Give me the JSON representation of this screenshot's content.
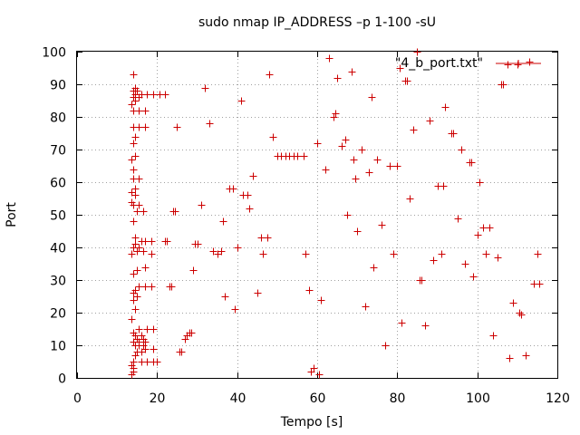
{
  "chart_data": {
    "type": "scatter",
    "title": "sudo nmap IP_ADDRESS –p 1-100 -sU",
    "xlabel": "Tempo [s]",
    "ylabel": "Port",
    "xlim": [
      0,
      120
    ],
    "ylim": [
      0,
      100
    ],
    "x_ticks": [
      0,
      20,
      40,
      60,
      80,
      100,
      120
    ],
    "y_ticks": [
      0,
      10,
      20,
      30,
      40,
      50,
      60,
      70,
      80,
      90,
      100
    ],
    "grid": true,
    "legend": {
      "position": "top-right"
    },
    "series": [
      {
        "name": "\"4_b_port.txt\"",
        "color": "#cc0000",
        "marker": "plus",
        "points": [
          [
            13.5,
            1
          ],
          [
            14,
            2
          ],
          [
            14,
            3
          ],
          [
            13.5,
            4
          ],
          [
            14,
            5
          ],
          [
            16,
            5
          ],
          [
            17.5,
            5
          ],
          [
            19,
            5
          ],
          [
            20,
            5
          ],
          [
            14.5,
            7
          ],
          [
            15,
            8
          ],
          [
            16,
            8
          ],
          [
            17,
            9
          ],
          [
            19,
            9
          ],
          [
            14.5,
            10
          ],
          [
            15.5,
            10
          ],
          [
            16.5,
            10
          ],
          [
            14,
            11
          ],
          [
            15.5,
            11
          ],
          [
            17,
            11
          ],
          [
            15,
            12
          ],
          [
            16.5,
            12
          ],
          [
            14.5,
            13
          ],
          [
            16,
            13
          ],
          [
            14,
            14
          ],
          [
            15.5,
            15
          ],
          [
            17.5,
            15
          ],
          [
            19,
            15
          ],
          [
            13.5,
            18
          ],
          [
            14.5,
            21
          ],
          [
            14,
            24
          ],
          [
            15,
            25
          ],
          [
            14,
            26
          ],
          [
            14.5,
            27
          ],
          [
            15.5,
            28
          ],
          [
            17,
            28
          ],
          [
            18.5,
            28
          ],
          [
            14,
            32
          ],
          [
            15,
            33
          ],
          [
            17,
            34
          ],
          [
            13.5,
            38
          ],
          [
            15,
            39
          ],
          [
            16.5,
            39
          ],
          [
            18.5,
            38
          ],
          [
            14,
            40
          ],
          [
            15.5,
            40
          ],
          [
            14.5,
            41
          ],
          [
            16,
            42
          ],
          [
            17,
            42
          ],
          [
            18.5,
            42
          ],
          [
            14.5,
            43
          ],
          [
            14,
            48
          ],
          [
            15,
            51
          ],
          [
            16.5,
            51
          ],
          [
            14,
            53
          ],
          [
            15.5,
            53
          ],
          [
            13.5,
            54
          ],
          [
            14.5,
            56
          ],
          [
            13.5,
            57
          ],
          [
            14.5,
            58
          ],
          [
            14,
            61
          ],
          [
            15.5,
            61
          ],
          [
            14,
            64
          ],
          [
            13.5,
            67
          ],
          [
            14.5,
            68
          ],
          [
            14,
            72
          ],
          [
            14.5,
            74
          ],
          [
            14,
            77
          ],
          [
            15.5,
            77
          ],
          [
            17,
            77
          ],
          [
            14,
            82
          ],
          [
            15.5,
            82
          ],
          [
            17,
            82
          ],
          [
            13.5,
            84
          ],
          [
            14.5,
            85
          ],
          [
            14,
            86
          ],
          [
            15.5,
            86
          ],
          [
            14.5,
            87
          ],
          [
            16,
            87
          ],
          [
            17.5,
            87
          ],
          [
            19,
            87
          ],
          [
            20.5,
            87
          ],
          [
            22,
            87
          ],
          [
            14,
            88
          ],
          [
            15,
            88
          ],
          [
            14.5,
            89
          ],
          [
            14,
            93
          ],
          [
            22,
            42
          ],
          [
            22.5,
            42
          ],
          [
            23,
            28
          ],
          [
            23.5,
            28
          ],
          [
            24,
            51
          ],
          [
            24.5,
            51
          ],
          [
            25,
            77
          ],
          [
            25.5,
            8
          ],
          [
            26,
            8
          ],
          [
            27,
            12
          ],
          [
            27.5,
            13
          ],
          [
            28,
            14
          ],
          [
            28.5,
            14
          ],
          [
            29,
            33
          ],
          [
            29.5,
            41
          ],
          [
            30,
            41
          ],
          [
            31,
            53
          ],
          [
            32,
            89
          ],
          [
            33,
            78
          ],
          [
            34,
            39
          ],
          [
            35,
            38
          ],
          [
            36,
            39
          ],
          [
            36.5,
            48
          ],
          [
            37,
            25
          ],
          [
            38,
            58
          ],
          [
            39,
            58
          ],
          [
            39.5,
            21
          ],
          [
            40,
            40
          ],
          [
            41,
            85
          ],
          [
            41.5,
            56
          ],
          [
            42.5,
            56
          ],
          [
            43,
            52
          ],
          [
            44,
            62
          ],
          [
            45,
            26
          ],
          [
            46,
            43
          ],
          [
            46.5,
            38
          ],
          [
            47.5,
            43
          ],
          [
            48,
            93
          ],
          [
            49,
            74
          ],
          [
            50,
            68
          ],
          [
            51,
            68
          ],
          [
            52,
            68
          ],
          [
            53,
            68
          ],
          [
            54,
            68
          ],
          [
            55,
            68
          ],
          [
            56.5,
            68
          ],
          [
            57,
            38
          ],
          [
            58,
            27
          ],
          [
            58.5,
            2
          ],
          [
            59,
            3
          ],
          [
            60,
            72
          ],
          [
            60.5,
            1
          ],
          [
            61,
            24
          ],
          [
            62,
            64
          ],
          [
            63,
            98
          ],
          [
            64,
            80
          ],
          [
            64.5,
            81
          ],
          [
            65,
            92
          ],
          [
            66,
            71
          ],
          [
            67,
            73
          ],
          [
            67.5,
            50
          ],
          [
            68.5,
            94
          ],
          [
            69,
            67
          ],
          [
            69.5,
            61
          ],
          [
            70,
            45
          ],
          [
            71,
            70
          ],
          [
            72,
            22
          ],
          [
            73,
            63
          ],
          [
            73.5,
            86
          ],
          [
            74,
            34
          ],
          [
            75,
            67
          ],
          [
            76,
            47
          ],
          [
            77,
            10
          ],
          [
            78,
            65
          ],
          [
            79,
            38
          ],
          [
            80,
            65
          ],
          [
            80.5,
            95
          ],
          [
            81,
            17
          ],
          [
            82,
            91
          ],
          [
            82.5,
            91
          ],
          [
            83,
            55
          ],
          [
            84,
            76
          ],
          [
            85,
            100
          ],
          [
            85.5,
            30
          ],
          [
            86,
            30
          ],
          [
            87,
            16
          ],
          [
            88,
            79
          ],
          [
            89,
            36
          ],
          [
            90,
            59
          ],
          [
            91,
            38
          ],
          [
            91.5,
            59
          ],
          [
            92,
            83
          ],
          [
            93.5,
            75
          ],
          [
            94,
            75
          ],
          [
            95,
            49
          ],
          [
            96,
            70
          ],
          [
            97,
            35
          ],
          [
            98,
            66
          ],
          [
            98.5,
            66
          ],
          [
            99,
            31
          ],
          [
            100,
            44
          ],
          [
            100.5,
            60
          ],
          [
            101.5,
            46
          ],
          [
            102,
            38
          ],
          [
            103,
            46
          ],
          [
            104,
            13
          ],
          [
            105,
            37
          ],
          [
            106,
            90
          ],
          [
            106.5,
            90
          ],
          [
            107.5,
            96
          ],
          [
            108,
            6
          ],
          [
            109,
            23
          ],
          [
            110,
            96
          ],
          [
            110.5,
            20
          ],
          [
            111,
            19.5
          ],
          [
            112,
            7
          ],
          [
            113,
            97
          ],
          [
            114,
            29
          ],
          [
            115,
            38
          ],
          [
            115.5,
            29
          ]
        ]
      }
    ]
  }
}
